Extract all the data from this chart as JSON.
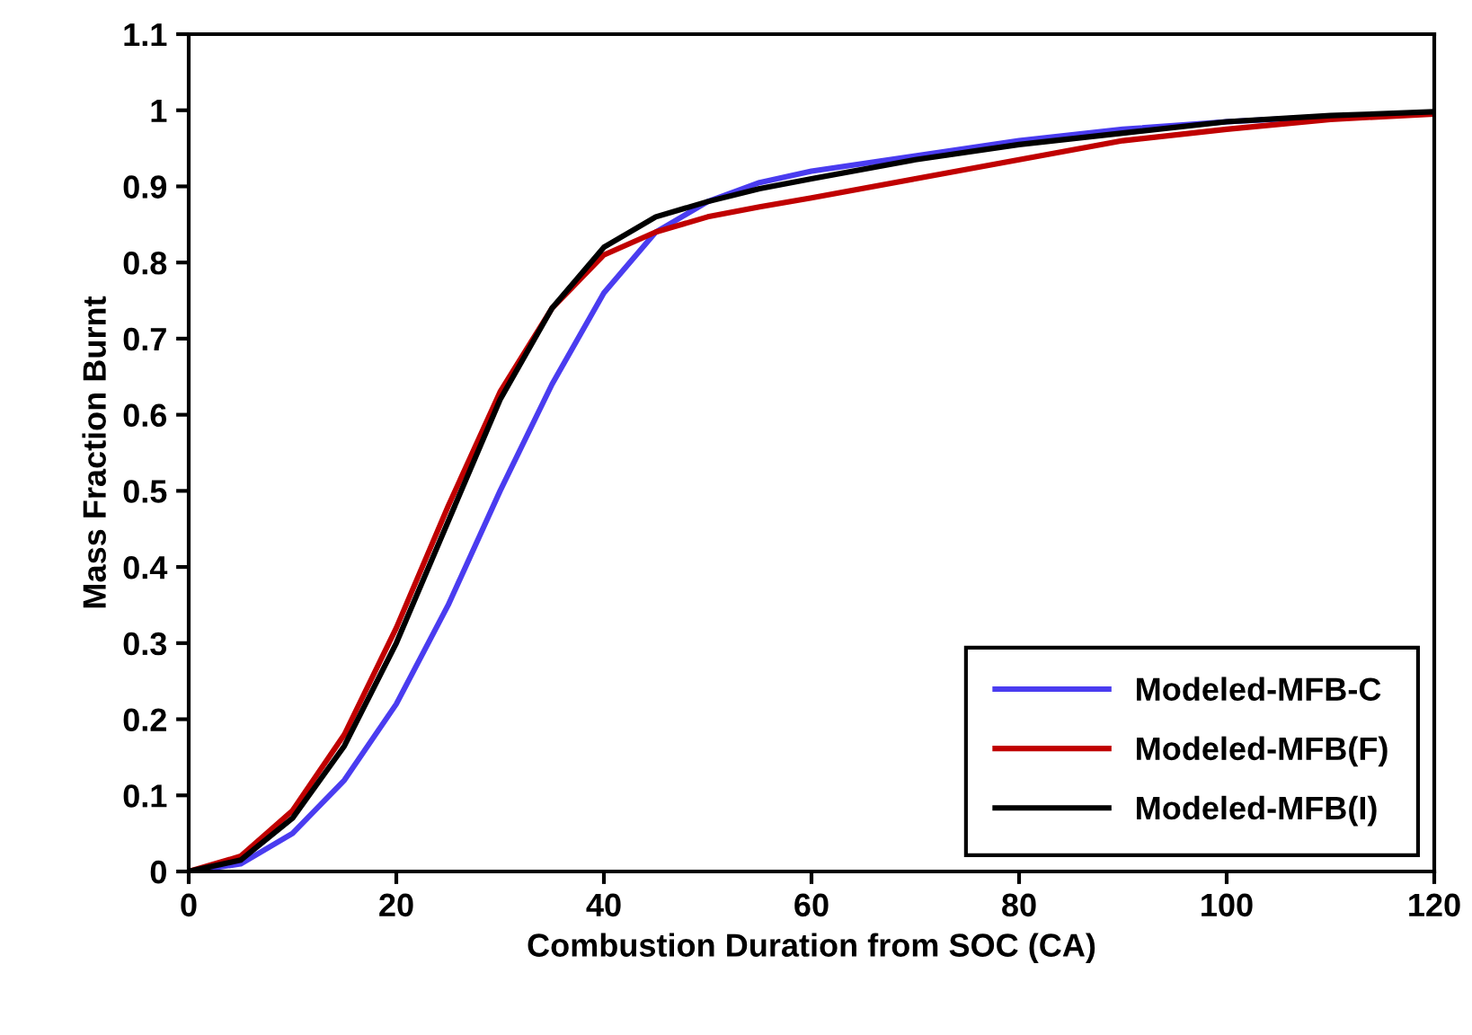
{
  "chart_data": {
    "type": "line",
    "xlabel": "Combustion Duration from SOC (CA)",
    "ylabel": "Mass Fraction Burnt",
    "x": [
      0,
      5,
      10,
      15,
      20,
      25,
      30,
      35,
      40,
      45,
      50,
      55,
      60,
      70,
      80,
      90,
      100,
      110,
      120
    ],
    "xlim": [
      0,
      120
    ],
    "xticks": [
      0,
      20,
      40,
      60,
      80,
      100,
      120
    ],
    "ylim": [
      0,
      1.1
    ],
    "yticks": [
      0,
      0.1,
      0.2,
      0.3,
      0.4,
      0.5,
      0.6,
      0.7,
      0.8,
      0.9,
      1,
      1.1
    ],
    "grid": false,
    "legend": "bottom right",
    "marker": "none",
    "line_style": "solid",
    "series": [
      {
        "name": "Modeled-MFB-C",
        "color": "#4a3cf0",
        "values": [
          0,
          0.01,
          0.05,
          0.12,
          0.22,
          0.35,
          0.5,
          0.64,
          0.76,
          0.84,
          0.88,
          0.905,
          0.92,
          0.94,
          0.96,
          0.975,
          0.985,
          0.992,
          0.997
        ]
      },
      {
        "name": "Modeled-MFB(F)",
        "color": "#c00000",
        "values": [
          0,
          0.02,
          0.08,
          0.18,
          0.32,
          0.48,
          0.63,
          0.74,
          0.81,
          0.84,
          0.86,
          0.873,
          0.885,
          0.91,
          0.935,
          0.96,
          0.975,
          0.988,
          0.995
        ]
      },
      {
        "name": "Modeled-MFB(I)",
        "color": "#000000",
        "values": [
          0,
          0.015,
          0.07,
          0.165,
          0.3,
          0.46,
          0.62,
          0.74,
          0.82,
          0.86,
          0.88,
          0.897,
          0.91,
          0.935,
          0.955,
          0.97,
          0.985,
          0.993,
          0.998
        ]
      }
    ]
  }
}
